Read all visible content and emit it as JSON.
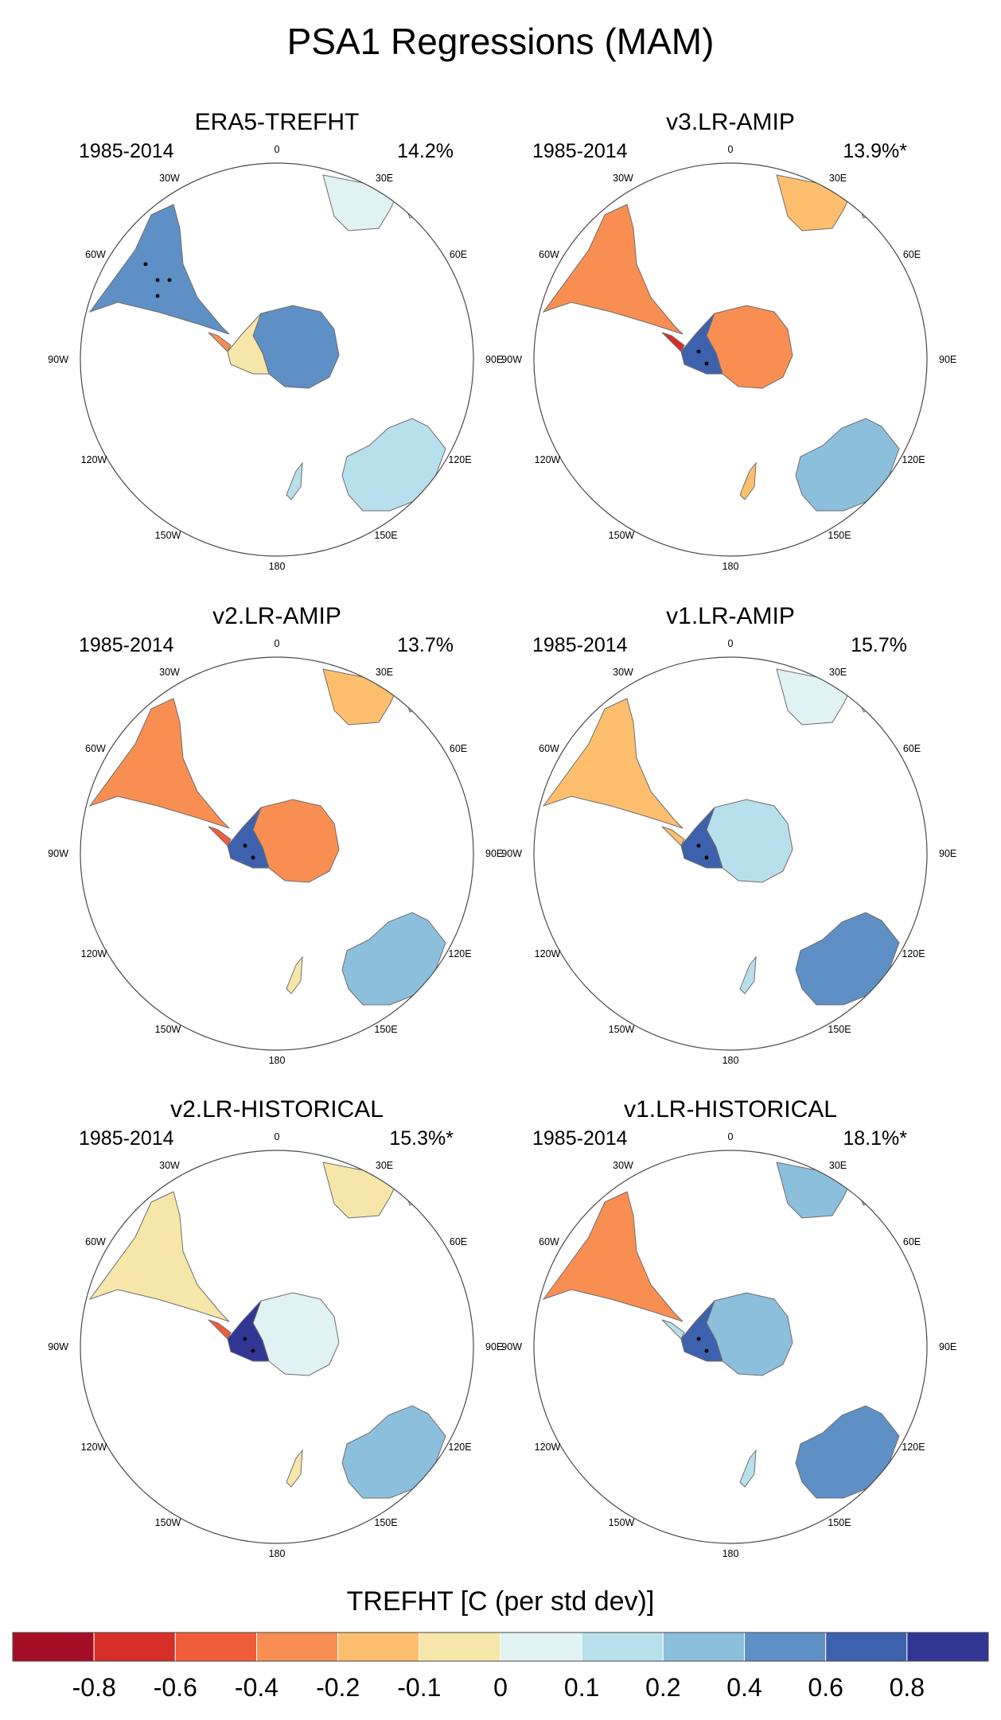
{
  "chart_data": {
    "type": "map",
    "title": "PSA1 Regressions (MAM)",
    "projection": "south-polar-stereographic",
    "lon_labels": [
      "0",
      "30E",
      "60E",
      "90E",
      "120E",
      "150E",
      "180",
      "150W",
      "120W",
      "90W",
      "60W",
      "30W"
    ],
    "panels": [
      {
        "name": "ERA5-TREFHT",
        "period": "1985-2014",
        "pct": "14.2%",
        "regions": {
          "south_america": 0.55,
          "antarctica_west": -0.1,
          "antarctica_east": 0.45,
          "antarctic_peninsula": -0.3,
          "africa": 0.05,
          "australia": 0.15,
          "new_zealand": 0.1
        }
      },
      {
        "name": "v3.LR-AMIP",
        "period": "1985-2014",
        "pct": "13.9%*",
        "regions": {
          "south_america": -0.25,
          "antarctica_west": 0.7,
          "antarctica_east": -0.3,
          "antarctic_peninsula": -0.8,
          "africa": -0.2,
          "australia": 0.2,
          "new_zealand": -0.15
        }
      },
      {
        "name": "v2.LR-AMIP",
        "period": "1985-2014",
        "pct": "13.7%",
        "regions": {
          "south_america": -0.35,
          "antarctica_west": 0.75,
          "antarctica_east": -0.3,
          "antarctic_peninsula": -0.5,
          "africa": -0.2,
          "australia": 0.3,
          "new_zealand": -0.1
        }
      },
      {
        "name": "v1.LR-AMIP",
        "period": "1985-2014",
        "pct": "15.7%",
        "regions": {
          "south_america": -0.15,
          "antarctica_west": 0.75,
          "antarctica_east": 0.1,
          "antarctic_peninsula": -0.2,
          "africa": 0.05,
          "australia": 0.4,
          "new_zealand": 0.1
        }
      },
      {
        "name": "v2.LR-HISTORICAL",
        "period": "1985-2014",
        "pct": "15.3%*",
        "regions": {
          "south_america": -0.1,
          "antarctica_west": 0.8,
          "antarctica_east": 0.0,
          "antarctic_peninsula": -0.6,
          "africa": -0.05,
          "australia": 0.35,
          "new_zealand": -0.1
        }
      },
      {
        "name": "v1.LR-HISTORICAL",
        "period": "1985-2014",
        "pct": "18.1%*",
        "regions": {
          "south_america": -0.3,
          "antarctica_west": 0.6,
          "antarctica_east": 0.2,
          "antarctic_peninsula": 0.1,
          "africa": 0.25,
          "australia": 0.4,
          "new_zealand": 0.15
        }
      }
    ],
    "colorbar": {
      "label": "TREFHT [C (per std dev)]",
      "tick_labels": [
        "-0.8",
        "-0.6",
        "-0.4",
        "-0.2",
        "-0.1",
        "0",
        "0.1",
        "0.2",
        "0.4",
        "0.6",
        "0.8"
      ],
      "colors": [
        "#a50f25",
        "#d62f27",
        "#ef5d3b",
        "#f98e52",
        "#fdbe6e",
        "#f7e6a9",
        "#e0f2f1",
        "#b8dfec",
        "#8cbfdc",
        "#5e90c6",
        "#3e61ad",
        "#313695"
      ]
    }
  }
}
